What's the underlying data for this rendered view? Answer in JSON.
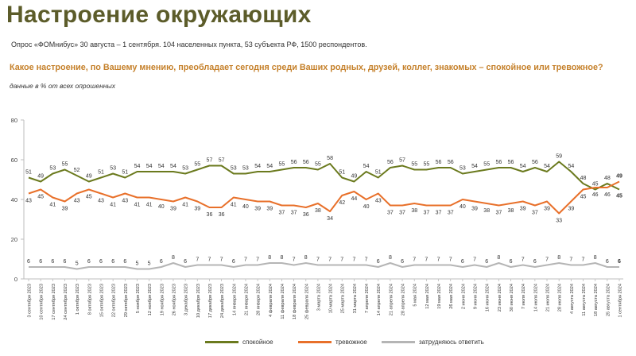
{
  "header": {
    "title": "Настроение окружающих",
    "subtitle": "Опрос «ФОМнибус» 30 августа – 1 сентября. 104 населенных пункта, 53 субъекта РФ, 1500 респондентов.",
    "question": "Какое настроение, по Вашему мнению, преобладает сегодня среди Ваших родных, друзей, коллег, знакомых – спокойное или тревожное?",
    "note": "данные в % от всех опрошенных"
  },
  "chart_data": {
    "type": "line",
    "ylim": [
      0,
      80
    ],
    "yticks": [
      0,
      20,
      40,
      60,
      80
    ],
    "grid": false,
    "legend_position": "bottom",
    "categories": [
      "3 сентября 2023",
      "10 сентября 2023",
      "17 сентября 2023",
      "24 сентября 2023",
      "1 октября 2023",
      "8 октября 2023",
      "15 октября 2023",
      "22 октября 2023",
      "29 октября 2023",
      "5 ноября 2023",
      "12 ноября 2023",
      "19 ноября 2023",
      "26 ноября 2023",
      "3 декабря 2023",
      "10 декабря 2023",
      "17 декабря 2023",
      "24 декабря 2023",
      "14 января 2024",
      "21 января 2024",
      "28 января 2024",
      "4 февраля 2024",
      "11 февраля 2024",
      "18 февраля 2024",
      "25 февраля 2024",
      "3 марта 2024",
      "10 марта 2024",
      "25 марта 2024",
      "31 марта 2024",
      "7 апреля 2024",
      "14 апреля 2024",
      "21 апреля 2024",
      "28 апреля 2024",
      "5 мая 2024",
      "12 мая 2024",
      "19 мая 2024",
      "26 мая 2024",
      "2 июня 2024",
      "9 июня 2024",
      "16 июня 2024",
      "23 июня 2024",
      "30 июня 2024",
      "7 июля 2024",
      "14 июля 2024",
      "21 июля 2024",
      "28 июля 2024",
      "4 августа 2024",
      "11 августа 2024",
      "18 августа 2024",
      "25 августа 2024",
      "1 сентября 2024"
    ],
    "series": [
      {
        "name": "спокойное",
        "color": "#6b7a1e",
        "values": [
          51,
          49,
          53,
          55,
          52,
          49,
          51,
          53,
          51,
          54,
          54,
          54,
          54,
          53,
          55,
          57,
          57,
          53,
          53,
          54,
          54,
          55,
          56,
          56,
          55,
          58,
          51,
          49,
          54,
          51,
          56,
          57,
          55,
          55,
          56,
          56,
          53,
          54,
          55,
          56,
          56,
          54,
          56,
          54,
          59,
          54,
          48,
          45,
          48,
          45
        ]
      },
      {
        "name": "тревожное",
        "color": "#e8702a",
        "values": [
          43,
          45,
          41,
          39,
          43,
          45,
          43,
          41,
          43,
          41,
          41,
          40,
          39,
          41,
          39,
          36,
          36,
          41,
          40,
          39,
          39,
          37,
          37,
          36,
          38,
          34,
          42,
          44,
          40,
          43,
          37,
          37,
          38,
          37,
          37,
          37,
          40,
          39,
          38,
          37,
          38,
          39,
          37,
          39,
          33,
          39,
          45,
          46,
          46,
          49
        ]
      },
      {
        "name": "затрудняюсь ответить",
        "color": "#b5b5b5",
        "values": [
          6,
          6,
          6,
          6,
          5,
          6,
          6,
          6,
          6,
          5,
          5,
          6,
          8,
          6,
          7,
          7,
          7,
          6,
          7,
          7,
          8,
          8,
          7,
          8,
          7,
          7,
          7,
          7,
          7,
          6,
          8,
          6,
          7,
          7,
          7,
          7,
          6,
          7,
          6,
          8,
          6,
          7,
          6,
          7,
          8,
          7,
          7,
          8,
          6,
          6
        ]
      }
    ]
  }
}
